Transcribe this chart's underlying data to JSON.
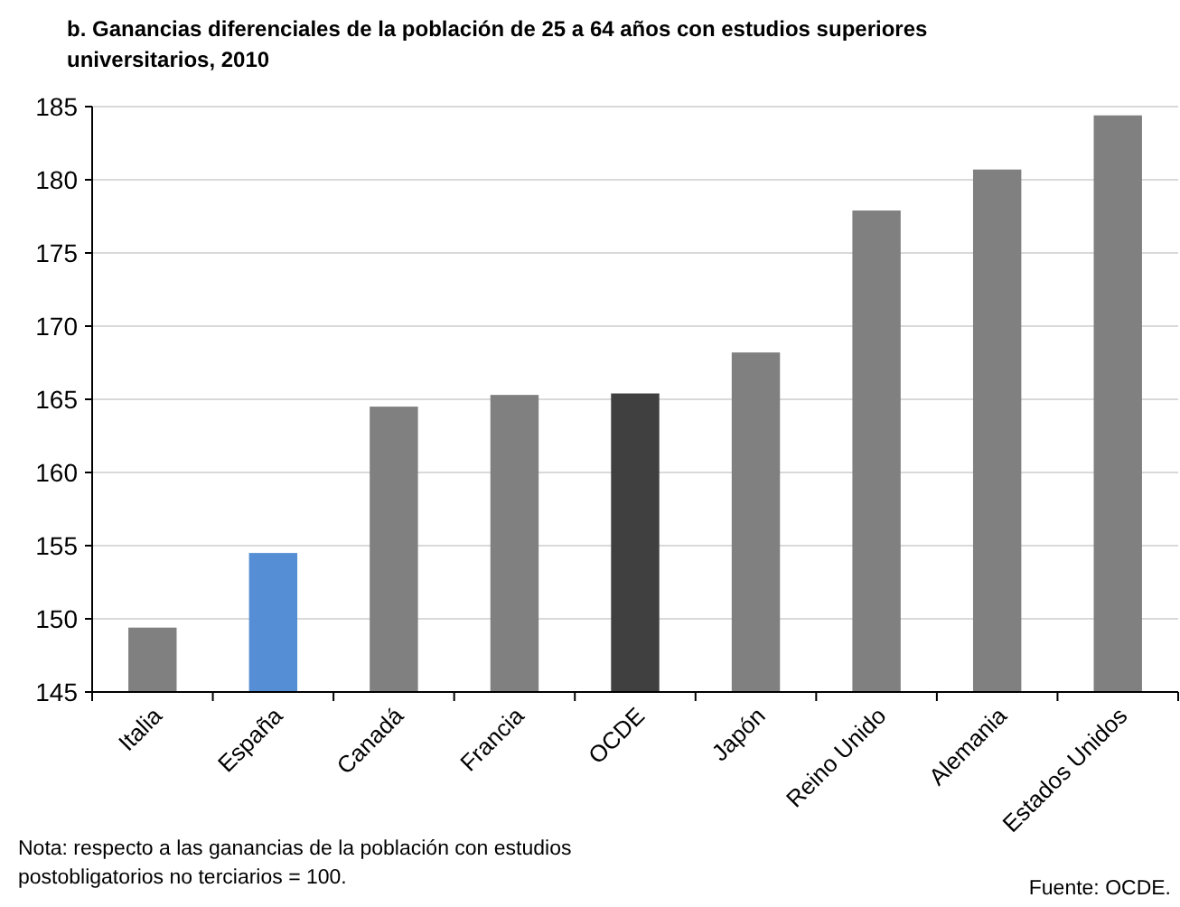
{
  "chart_data": {
    "type": "bar",
    "title": "b. Ganancias diferenciales de la población de 25 a 64 años con estudios superiores universitarios, 2010",
    "categories": [
      "Italia",
      "España",
      "Canadá",
      "Francia",
      "OCDE",
      "Japón",
      "Reino Unido",
      "Alemania",
      "Estados Unidos"
    ],
    "values": [
      149.4,
      154.5,
      164.5,
      165.3,
      165.4,
      168.2,
      177.9,
      180.7,
      184.4
    ],
    "colors": [
      "#808080",
      "#558ed5",
      "#808080",
      "#808080",
      "#404040",
      "#808080",
      "#808080",
      "#808080",
      "#808080"
    ],
    "ylim": [
      145,
      185
    ],
    "yticks": [
      145,
      150,
      155,
      160,
      165,
      170,
      175,
      180,
      185
    ],
    "grid": "y",
    "annotations": [
      "Nota: respecto a las ganancias de la población con estudios postobligatorios no terciarios  = 100.",
      "Fuente: OCDE."
    ]
  }
}
